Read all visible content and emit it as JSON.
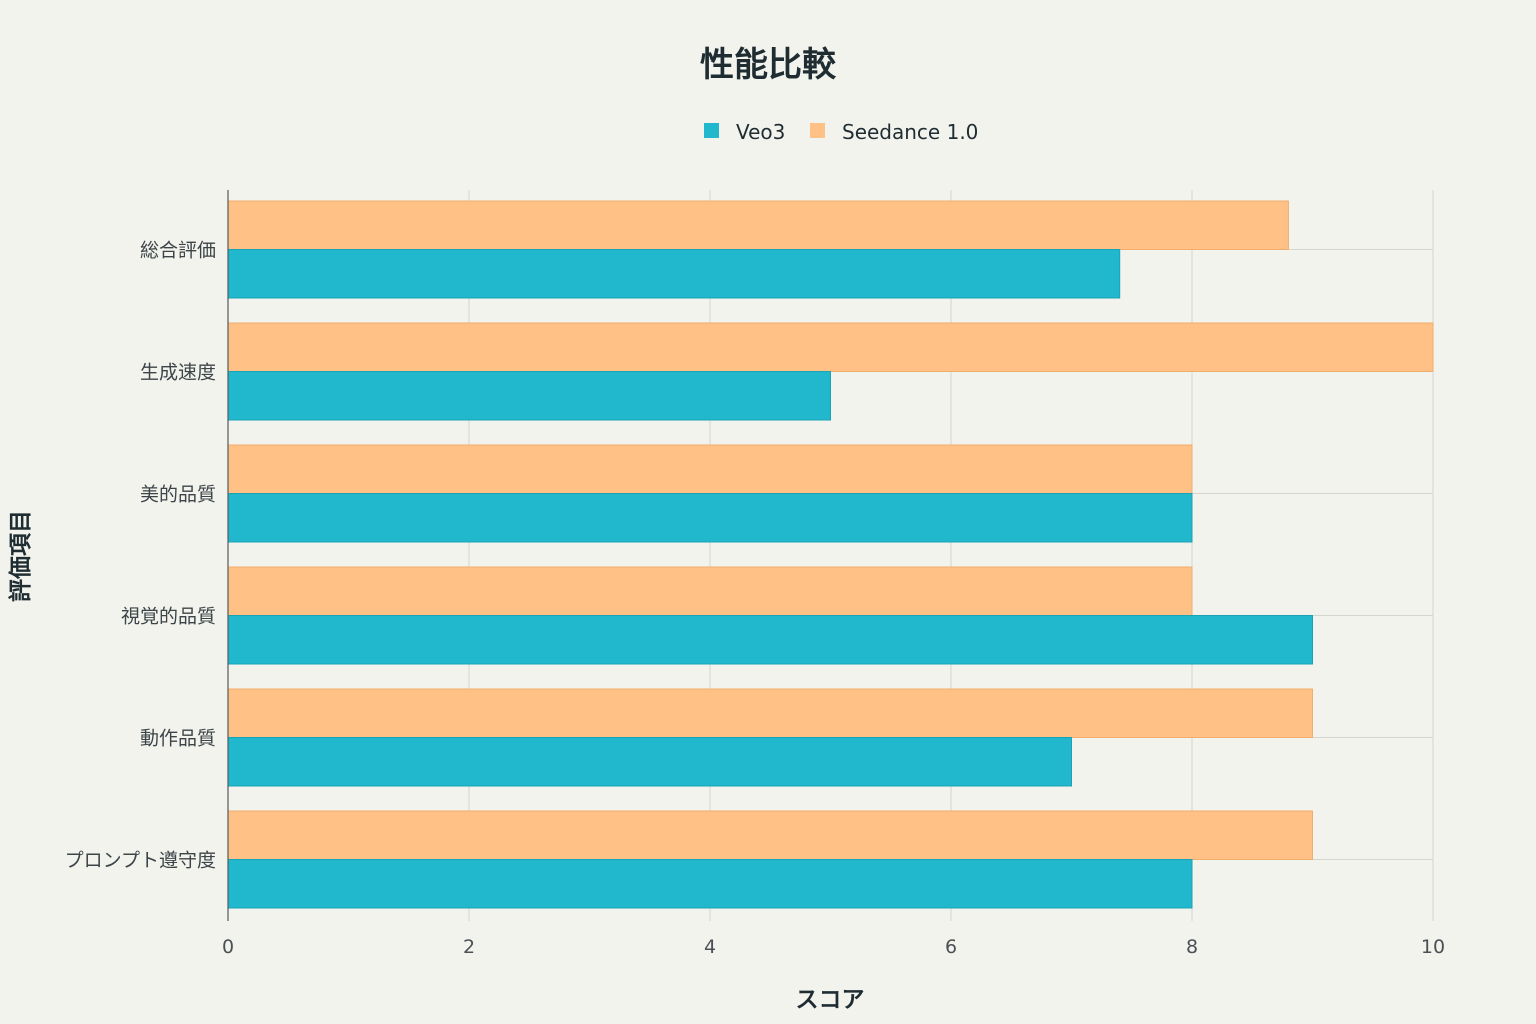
{
  "chart_data": {
    "type": "bar",
    "orientation": "horizontal",
    "title": "性能比較",
    "xlabel": "スコア",
    "ylabel": "評価項目",
    "xlim": [
      0,
      10
    ],
    "x_ticks": [
      "0",
      "2",
      "4",
      "6",
      "8",
      "10"
    ],
    "categories": [
      "総合評価",
      "生成速度",
      "美的品質",
      "視覚的品質",
      "動作品質",
      "プロンプト遵守度"
    ],
    "series": [
      {
        "name": "Veo3",
        "color": "#21b8cd",
        "values": [
          7.4,
          5,
          8,
          9,
          7,
          8
        ]
      },
      {
        "name": "Seedance 1.0",
        "color": "#ffc185",
        "values": [
          8.8,
          10,
          8,
          8,
          9,
          9
        ]
      }
    ],
    "legend_position": "top-center",
    "grid": true
  }
}
